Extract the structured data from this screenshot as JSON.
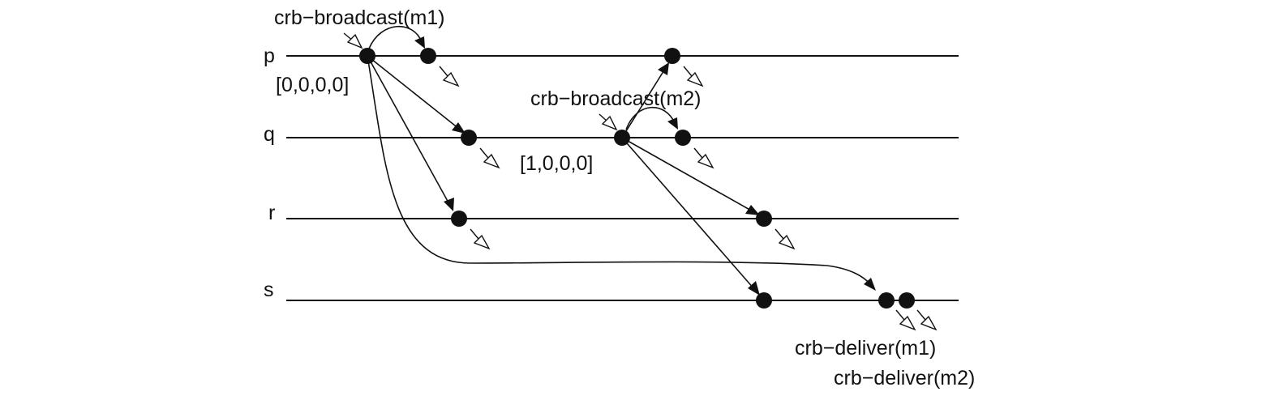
{
  "processes": [
    {
      "id": "p",
      "label": "p"
    },
    {
      "id": "q",
      "label": "q"
    },
    {
      "id": "r",
      "label": "r"
    },
    {
      "id": "s",
      "label": "s"
    }
  ],
  "labels": {
    "broadcast_m1": "crb−broadcast(m1)",
    "broadcast_m2": "crb−broadcast(m2)",
    "vector_p": "[0,0,0,0]",
    "vector_q": "[1,0,0,0]",
    "deliver_m1": "crb−deliver(m1)",
    "deliver_m2": "crb−deliver(m2)"
  },
  "colors": {
    "ink": "#111111",
    "background": "#ffffff"
  }
}
